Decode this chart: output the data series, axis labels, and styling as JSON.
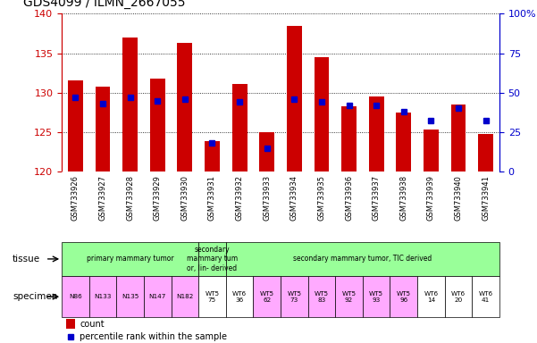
{
  "title": "GDS4099 / ILMN_2667055",
  "samples": [
    "GSM733926",
    "GSM733927",
    "GSM733928",
    "GSM733929",
    "GSM733930",
    "GSM733931",
    "GSM733932",
    "GSM733933",
    "GSM733934",
    "GSM733935",
    "GSM733936",
    "GSM733937",
    "GSM733938",
    "GSM733939",
    "GSM733940",
    "GSM733941"
  ],
  "counts": [
    131.5,
    130.8,
    137.0,
    131.8,
    136.3,
    123.8,
    131.1,
    125.0,
    138.5,
    134.5,
    128.3,
    129.5,
    127.5,
    125.3,
    128.5,
    124.8
  ],
  "percentile_ranks": [
    47,
    43,
    47,
    45,
    46,
    18,
    44,
    15,
    46,
    44,
    42,
    42,
    38,
    32,
    40,
    32
  ],
  "ymin": 120,
  "ymax": 140,
  "yticks": [
    120,
    125,
    130,
    135,
    140
  ],
  "right_yticks": [
    0,
    25,
    50,
    75,
    100
  ],
  "bar_color": "#cc0000",
  "dot_color": "#0000cc",
  "bar_bottom": 120,
  "tissue_groups": [
    {
      "label": "primary mammary tumor",
      "start": 0,
      "end": 5,
      "color": "#99ff99"
    },
    {
      "label": "secondary\nmammary tum\nor, lin- derived",
      "start": 5,
      "end": 6,
      "color": "#99ff99"
    },
    {
      "label": "secondary mammary tumor, TIC derived",
      "start": 6,
      "end": 16,
      "color": "#99ff99"
    }
  ],
  "specimen_labels": [
    {
      "label": "N86",
      "color": "#ffaaff"
    },
    {
      "label": "N133",
      "color": "#ffaaff"
    },
    {
      "label": "N135",
      "color": "#ffaaff"
    },
    {
      "label": "N147",
      "color": "#ffaaff"
    },
    {
      "label": "N182",
      "color": "#ffaaff"
    },
    {
      "label": "WT5\n75",
      "color": "#ffffff"
    },
    {
      "label": "WT6\n36",
      "color": "#ffffff"
    },
    {
      "label": "WT5\n62",
      "color": "#ffaaff"
    },
    {
      "label": "WT5\n73",
      "color": "#ffaaff"
    },
    {
      "label": "WT5\n83",
      "color": "#ffaaff"
    },
    {
      "label": "WT5\n92",
      "color": "#ffaaff"
    },
    {
      "label": "WT5\n93",
      "color": "#ffaaff"
    },
    {
      "label": "WT5\n96",
      "color": "#ffaaff"
    },
    {
      "label": "WT6\n14",
      "color": "#ffffff"
    },
    {
      "label": "WT6\n20",
      "color": "#ffffff"
    },
    {
      "label": "WT6\n41",
      "color": "#ffffff"
    }
  ],
  "tick_color_left": "#cc0000",
  "tick_color_right": "#0000cc",
  "xticklabel_bg": "#cccccc",
  "bar_width": 0.55
}
